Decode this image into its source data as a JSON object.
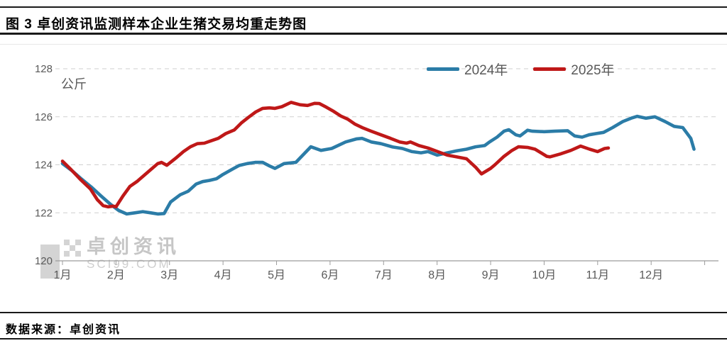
{
  "title": "图 3 卓创资讯监测样本企业生猪交易均重走势图",
  "source": "数据来源：卓创资讯",
  "watermark": {
    "name": "卓创资讯",
    "domain": "SCI99.COM"
  },
  "legend": [
    {
      "label": "2024年"
    },
    {
      "label": "2025年"
    }
  ],
  "chart_data": {
    "type": "line",
    "title": "卓创资讯监测样本企业生猪交易均重走势图",
    "unit_label": "公斤",
    "ylabel": "公斤",
    "xlabel": "",
    "ylim": [
      120,
      128
    ],
    "yticks": [
      128,
      126,
      124,
      122,
      120
    ],
    "xticks": [
      "1月",
      "2月",
      "3月",
      "4月",
      "5月",
      "6月",
      "7月",
      "8月",
      "9月",
      "10月",
      "11月",
      "12月"
    ],
    "grid": "horizontal-dashed",
    "legend_position": "top-right",
    "x_unit": "month (1=1月 ... 12=12月, fractional = weeks within month)",
    "series": [
      {
        "name": "2024年",
        "color": "#2B7CA7",
        "points": [
          [
            1.0,
            124.05
          ],
          [
            1.18,
            123.75
          ],
          [
            1.36,
            123.4
          ],
          [
            1.55,
            123.05
          ],
          [
            1.72,
            122.7
          ],
          [
            1.9,
            122.35
          ],
          [
            2.05,
            122.1
          ],
          [
            2.2,
            121.95
          ],
          [
            2.35,
            122.0
          ],
          [
            2.5,
            122.05
          ],
          [
            2.65,
            122.0
          ],
          [
            2.78,
            121.95
          ],
          [
            2.9,
            121.97
          ],
          [
            3.02,
            122.45
          ],
          [
            3.2,
            122.75
          ],
          [
            3.35,
            122.9
          ],
          [
            3.5,
            123.2
          ],
          [
            3.62,
            123.3
          ],
          [
            3.75,
            123.35
          ],
          [
            3.88,
            123.42
          ],
          [
            4.0,
            123.6
          ],
          [
            4.2,
            123.85
          ],
          [
            4.3,
            123.97
          ],
          [
            4.45,
            124.05
          ],
          [
            4.6,
            124.1
          ],
          [
            4.74,
            124.1
          ],
          [
            4.87,
            123.95
          ],
          [
            4.97,
            123.85
          ],
          [
            5.14,
            124.05
          ],
          [
            5.36,
            124.1
          ],
          [
            5.64,
            124.75
          ],
          [
            5.83,
            124.6
          ],
          [
            6.03,
            124.68
          ],
          [
            6.29,
            124.95
          ],
          [
            6.5,
            125.08
          ],
          [
            6.6,
            125.1
          ],
          [
            6.77,
            124.95
          ],
          [
            6.95,
            124.88
          ],
          [
            7.17,
            124.74
          ],
          [
            7.35,
            124.68
          ],
          [
            7.53,
            124.55
          ],
          [
            7.7,
            124.5
          ],
          [
            7.83,
            124.55
          ],
          [
            8.0,
            124.4
          ],
          [
            8.19,
            124.5
          ],
          [
            8.36,
            124.58
          ],
          [
            8.55,
            124.65
          ],
          [
            8.72,
            124.75
          ],
          [
            8.89,
            124.8
          ],
          [
            8.98,
            124.95
          ],
          [
            9.12,
            125.15
          ],
          [
            9.25,
            125.4
          ],
          [
            9.34,
            125.46
          ],
          [
            9.47,
            125.25
          ],
          [
            9.55,
            125.2
          ],
          [
            9.69,
            125.44
          ],
          [
            9.78,
            125.4
          ],
          [
            10.0,
            125.38
          ],
          [
            10.2,
            125.4
          ],
          [
            10.44,
            125.42
          ],
          [
            10.57,
            125.2
          ],
          [
            10.71,
            125.15
          ],
          [
            10.84,
            125.25
          ],
          [
            10.97,
            125.3
          ],
          [
            11.11,
            125.35
          ],
          [
            11.28,
            125.55
          ],
          [
            11.47,
            125.8
          ],
          [
            11.64,
            125.95
          ],
          [
            11.74,
            126.02
          ],
          [
            11.9,
            125.94
          ],
          [
            12.07,
            126.0
          ],
          [
            12.26,
            125.8
          ],
          [
            12.43,
            125.6
          ],
          [
            12.59,
            125.55
          ],
          [
            12.74,
            125.1
          ],
          [
            12.8,
            124.65
          ]
        ]
      },
      {
        "name": "2025年",
        "color": "#BF1818",
        "points": [
          [
            1.0,
            124.15
          ],
          [
            1.16,
            123.8
          ],
          [
            1.33,
            123.4
          ],
          [
            1.52,
            123.0
          ],
          [
            1.65,
            122.55
          ],
          [
            1.76,
            122.3
          ],
          [
            1.85,
            122.25
          ],
          [
            1.95,
            122.28
          ],
          [
            2.0,
            122.25
          ],
          [
            2.13,
            122.7
          ],
          [
            2.26,
            123.1
          ],
          [
            2.39,
            123.3
          ],
          [
            2.52,
            123.55
          ],
          [
            2.65,
            123.8
          ],
          [
            2.78,
            124.05
          ],
          [
            2.85,
            124.1
          ],
          [
            2.95,
            123.98
          ],
          [
            3.13,
            124.3
          ],
          [
            3.26,
            124.55
          ],
          [
            3.39,
            124.75
          ],
          [
            3.52,
            124.88
          ],
          [
            3.65,
            124.9
          ],
          [
            3.78,
            125.0
          ],
          [
            3.91,
            125.1
          ],
          [
            4.05,
            125.3
          ],
          [
            4.21,
            125.45
          ],
          [
            4.34,
            125.74
          ],
          [
            4.47,
            125.97
          ],
          [
            4.61,
            126.2
          ],
          [
            4.74,
            126.35
          ],
          [
            4.87,
            126.37
          ],
          [
            4.97,
            126.35
          ],
          [
            5.1,
            126.42
          ],
          [
            5.27,
            126.6
          ],
          [
            5.44,
            126.5
          ],
          [
            5.58,
            126.47
          ],
          [
            5.71,
            126.56
          ],
          [
            5.8,
            126.55
          ],
          [
            5.93,
            126.4
          ],
          [
            6.07,
            126.22
          ],
          [
            6.2,
            126.03
          ],
          [
            6.33,
            125.9
          ],
          [
            6.46,
            125.7
          ],
          [
            6.6,
            125.55
          ],
          [
            6.77,
            125.4
          ],
          [
            6.95,
            125.25
          ],
          [
            7.13,
            125.1
          ],
          [
            7.3,
            124.95
          ],
          [
            7.43,
            124.9
          ],
          [
            7.5,
            124.95
          ],
          [
            7.66,
            124.8
          ],
          [
            7.83,
            124.7
          ],
          [
            8.01,
            124.55
          ],
          [
            8.19,
            124.4
          ],
          [
            8.36,
            124.33
          ],
          [
            8.55,
            124.25
          ],
          [
            8.72,
            123.9
          ],
          [
            8.83,
            123.62
          ],
          [
            9.0,
            123.85
          ],
          [
            9.08,
            124.0
          ],
          [
            9.25,
            124.35
          ],
          [
            9.4,
            124.6
          ],
          [
            9.52,
            124.75
          ],
          [
            9.7,
            124.72
          ],
          [
            9.83,
            124.65
          ],
          [
            10.05,
            124.35
          ],
          [
            10.11,
            124.33
          ],
          [
            10.3,
            124.45
          ],
          [
            10.5,
            124.6
          ],
          [
            10.68,
            124.78
          ],
          [
            10.85,
            124.65
          ],
          [
            11.0,
            124.55
          ],
          [
            11.13,
            124.68
          ],
          [
            11.2,
            124.7
          ]
        ]
      }
    ]
  }
}
